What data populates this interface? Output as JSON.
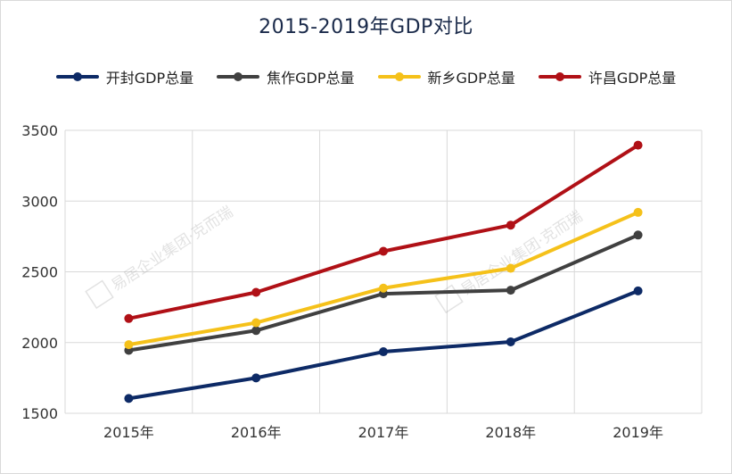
{
  "chart_data": {
    "type": "line",
    "title": "2015-2019年GDP对比",
    "xlabel": "",
    "ylabel": "",
    "categories": [
      "2015年",
      "2016年",
      "2017年",
      "2018年",
      "2019年"
    ],
    "ylim": [
      1500,
      3500
    ],
    "yticks": [
      1500,
      2000,
      2500,
      3000,
      3500
    ],
    "grid": true,
    "legend_position": "top",
    "series": [
      {
        "name": "开封GDP总量",
        "color": "#0d2a66",
        "values": [
          1605,
          1750,
          1935,
          2005,
          2365
        ]
      },
      {
        "name": "焦作GDP总量",
        "color": "#404040",
        "values": [
          1945,
          2085,
          2345,
          2370,
          2760
        ]
      },
      {
        "name": "新乡GDP总量",
        "color": "#f5c11a",
        "values": [
          1985,
          2140,
          2385,
          2525,
          2920
        ]
      },
      {
        "name": "许昌GDP总量",
        "color": "#b01016",
        "values": [
          2170,
          2355,
          2645,
          2830,
          3395
        ]
      }
    ]
  },
  "watermark": "易居企业集团·克而瑞"
}
